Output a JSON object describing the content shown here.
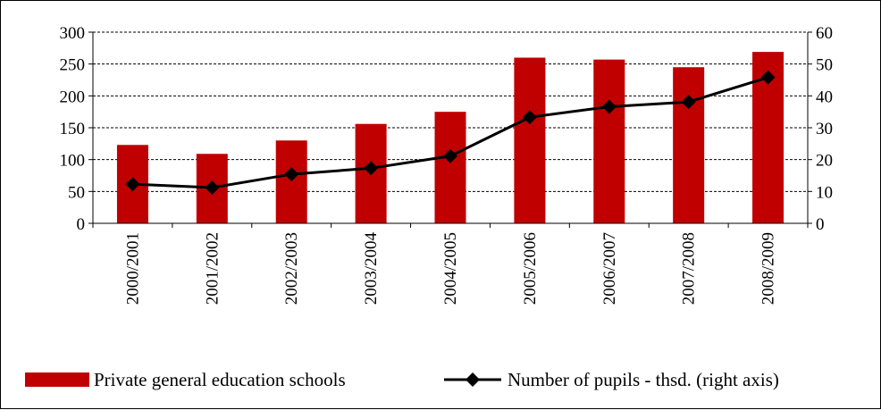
{
  "chart_data": {
    "type": "bar+line",
    "categories": [
      "2000/2001",
      "2001/2002",
      "2002/2003",
      "2003/2004",
      "2004/2005",
      "2005/2006",
      "2006/2007",
      "2007/2008",
      "2008/2009"
    ],
    "series": [
      {
        "name": "Private general education schools",
        "type": "bar",
        "axis": "left",
        "color": "#c00000",
        "values": [
          123,
          109,
          130,
          156,
          175,
          260,
          257,
          245,
          269
        ]
      },
      {
        "name": "Number of pupils - thsd. (right axis)",
        "type": "line",
        "axis": "right",
        "color": "#000000",
        "marker": "diamond",
        "values": [
          12.3,
          11.2,
          15.4,
          17.3,
          21.1,
          33.3,
          36.6,
          38.1,
          45.8
        ]
      }
    ],
    "y_left": {
      "min": 0,
      "max": 300,
      "step": 50
    },
    "y_right": {
      "min": 0,
      "max": 60,
      "step": 10
    },
    "grid": true,
    "legend_position": "bottom"
  }
}
